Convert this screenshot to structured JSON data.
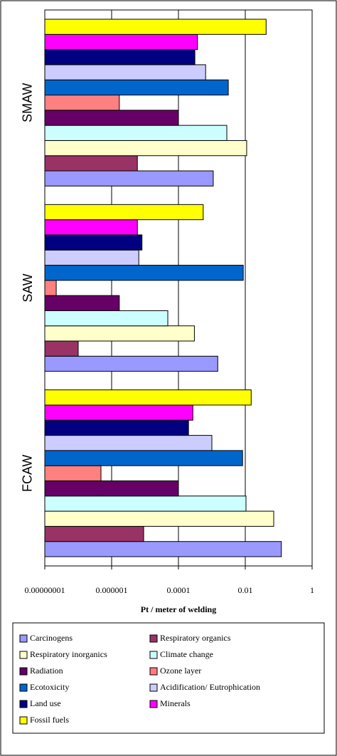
{
  "chart_data": {
    "type": "bar",
    "orientation": "horizontal",
    "xscale": "log",
    "xlabel": "Pt / meter of welding",
    "categories": [
      "SMAW",
      "SAW",
      "FCAW"
    ],
    "xlim": [
      1e-08,
      1
    ],
    "xticks": [
      {
        "value": 1e-08,
        "label": "0.00000001"
      },
      {
        "value": 1e-06,
        "label": "0.000001"
      },
      0.0001,
      0.01,
      1
    ],
    "grid": true,
    "legend": "bottom",
    "series": [
      {
        "name": "Carcinogens",
        "color": "#9999ff",
        "values": [
          0.0011,
          0.0015,
          0.12
        ]
      },
      {
        "name": "Respiratory organics",
        "color": "#993366",
        "values": [
          5.9e-06,
          1e-07,
          9.1e-06
        ]
      },
      {
        "name": "Respiratory inorganics",
        "color": "#ffffcc",
        "values": [
          0.011,
          0.0003,
          0.071
        ]
      },
      {
        "name": "Climate change",
        "color": "#ccffff",
        "values": [
          0.0028,
          4.8e-05,
          0.0105
        ]
      },
      {
        "name": "Radiation",
        "color": "#660066",
        "values": [
          0.0001,
          1.7e-06,
          0.0001
        ]
      },
      {
        "name": "Ozone layer",
        "color": "#ff8080",
        "values": [
          1.7e-06,
          2.2e-08,
          4.8e-07
        ]
      },
      {
        "name": "Ecotoxicity",
        "color": "#0066cc",
        "values": [
          0.0031,
          0.0087,
          0.0083
        ]
      },
      {
        "name": "Acidification/ Eutrophication",
        "color": "#ccccff",
        "values": [
          0.00065,
          6.5e-06,
          0.001
        ]
      },
      {
        "name": "Land use",
        "color": "#000080",
        "values": [
          0.00031,
          8.1e-06,
          0.0002
        ]
      },
      {
        "name": "Minerals",
        "color": "#ff00ff",
        "values": [
          0.00037,
          5.9e-06,
          0.00027
        ]
      },
      {
        "name": "Fossil fuels",
        "color": "#ffff00",
        "values": [
          0.042,
          0.00055,
          0.015
        ]
      }
    ]
  }
}
